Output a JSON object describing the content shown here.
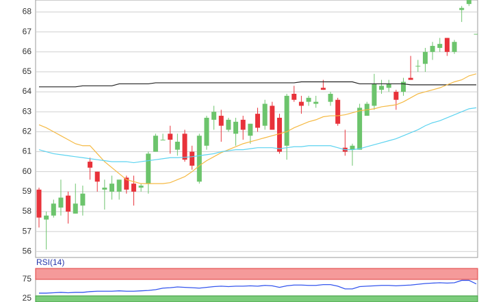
{
  "chart_data": [
    {
      "type": "candlestick",
      "ylim": [
        55.7,
        68.6
      ],
      "yticks": [
        56,
        57,
        58,
        59,
        60,
        61,
        62,
        63,
        64,
        65,
        66,
        67,
        68
      ],
      "grid": true,
      "up_color": "#6cc46c",
      "down_color": "#e8323a",
      "open": [
        59.1,
        57.6,
        57.8,
        58.2,
        58.8,
        57.9,
        58.3,
        60.5,
        60.0,
        59.1,
        59.0,
        59.0,
        59.7,
        59.4,
        59.2,
        59.4,
        61.0,
        61.6,
        61.9,
        61.1,
        61.9,
        61.0,
        59.5,
        61.3,
        62.6,
        62.8,
        62.1,
        61.9,
        62.6,
        61.8,
        62.9,
        62.3,
        63.3,
        62.7,
        61.3,
        63.9,
        63.5,
        63.5,
        63.4,
        64.2,
        63.5,
        63.6,
        61.2,
        61.1,
        61.1,
        62.8,
        63.3,
        64.1,
        64.2,
        64.0,
        64.0,
        64.7,
        65.3,
        65.4,
        66.0,
        66.2,
        66.7,
        66.0,
        68.1,
        68.4,
        66.9
      ],
      "high": [
        59.2,
        58.0,
        58.6,
        59.6,
        59.0,
        59.4,
        59.3,
        60.7,
        60.0,
        59.6,
        59.8,
        59.6,
        59.8,
        59.8,
        59.4,
        61.0,
        61.9,
        61.9,
        62.3,
        61.9,
        62.1,
        61.3,
        61.9,
        62.8,
        63.3,
        63.1,
        62.7,
        62.7,
        62.8,
        62.4,
        63.2,
        63.6,
        63.5,
        62.9,
        63.9,
        64.3,
        63.8,
        63.8,
        63.8,
        64.6,
        64.0,
        63.7,
        62.1,
        61.4,
        63.4,
        63.5,
        64.9,
        64.6,
        64.6,
        64.1,
        64.7,
        65.8,
        65.6,
        66.2,
        66.5,
        66.7,
        66.7,
        66.6,
        68.3,
        68.6,
        66.9
      ],
      "low": [
        57.2,
        56.1,
        57.7,
        57.8,
        57.4,
        57.9,
        57.8,
        59.6,
        59.0,
        58.1,
        58.6,
        58.6,
        58.9,
        58.3,
        59.0,
        58.9,
        61.0,
        61.6,
        60.9,
        60.8,
        60.5,
        60.1,
        59.4,
        61.1,
        62.1,
        61.5,
        62.0,
        61.3,
        61.6,
        61.4,
        62.0,
        62.1,
        62.1,
        60.9,
        60.6,
        63.5,
        62.9,
        63.3,
        63.2,
        64.1,
        63.3,
        62.3,
        60.8,
        60.3,
        61.1,
        62.8,
        63.1,
        63.9,
        64.0,
        63.1,
        63.8,
        64.6,
        65.0,
        65.0,
        65.6,
        66.0,
        65.8,
        65.9,
        67.5,
        68.3,
        66.9
      ],
      "close": [
        57.7,
        57.8,
        58.4,
        58.7,
        58.0,
        58.4,
        58.9,
        60.2,
        59.5,
        59.2,
        59.4,
        59.6,
        59.1,
        59.0,
        59.3,
        60.9,
        61.8,
        61.6,
        61.6,
        61.5,
        60.6,
        60.3,
        61.8,
        62.7,
        63.0,
        62.3,
        62.6,
        62.5,
        62.1,
        62.4,
        62.2,
        63.4,
        62.1,
        61.0,
        63.8,
        63.6,
        63.3,
        63.7,
        63.5,
        64.1,
        63.9,
        62.4,
        61.0,
        61.3,
        63.2,
        63.4,
        64.4,
        64.3,
        64.4,
        63.6,
        64.5,
        64.6,
        65.3,
        66.0,
        66.3,
        66.4,
        66.0,
        66.5,
        68.2,
        68.6,
        66.9
      ],
      "series": [
        {
          "color": "#222222",
          "values": [
            64.25,
            64.25,
            64.25,
            64.25,
            64.25,
            64.25,
            64.3,
            64.3,
            64.3,
            64.3,
            64.3,
            64.4,
            64.4,
            64.4,
            64.4,
            64.4,
            64.45,
            64.45,
            64.45,
            64.45,
            64.45,
            64.45,
            64.45,
            64.45,
            64.45,
            64.45,
            64.45,
            64.45,
            64.45,
            64.45,
            64.45,
            64.45,
            64.45,
            64.45,
            64.45,
            64.45,
            64.5,
            64.5,
            64.5,
            64.5,
            64.5,
            64.5,
            64.5,
            64.5,
            64.4,
            64.4,
            64.4,
            64.4,
            64.4,
            64.4,
            64.4,
            64.35,
            64.35,
            64.35,
            64.35,
            64.35,
            64.35,
            64.35,
            64.35,
            64.35,
            64.35
          ]
        },
        {
          "color": "#f5b942",
          "values": [
            62.35,
            62.2,
            62.0,
            61.8,
            61.6,
            61.4,
            61.3,
            61.3,
            60.9,
            60.5,
            60.2,
            59.9,
            59.6,
            59.5,
            59.4,
            59.4,
            59.4,
            59.4,
            59.45,
            59.6,
            59.75,
            60.0,
            60.3,
            60.55,
            60.75,
            60.95,
            61.1,
            61.25,
            61.4,
            61.5,
            61.6,
            61.7,
            61.8,
            61.9,
            62.0,
            62.2,
            62.35,
            62.5,
            62.6,
            62.75,
            62.8,
            62.8,
            62.85,
            62.95,
            63.05,
            63.1,
            63.15,
            63.25,
            63.3,
            63.35,
            63.5,
            63.7,
            63.9,
            64.0,
            64.1,
            64.2,
            64.35,
            64.5,
            64.6,
            64.8,
            64.9
          ]
        },
        {
          "color": "#5bd3f0",
          "values": [
            61.1,
            61.0,
            60.9,
            60.85,
            60.8,
            60.75,
            60.7,
            60.65,
            60.6,
            60.55,
            60.5,
            60.5,
            60.5,
            60.45,
            60.5,
            60.55,
            60.6,
            60.65,
            60.7,
            60.7,
            60.72,
            60.75,
            60.8,
            60.85,
            60.9,
            61.0,
            61.05,
            61.1,
            61.1,
            61.15,
            61.2,
            61.2,
            61.2,
            61.15,
            61.2,
            61.25,
            61.25,
            61.3,
            61.3,
            61.3,
            61.3,
            61.2,
            61.1,
            61.1,
            61.15,
            61.25,
            61.35,
            61.45,
            61.55,
            61.65,
            61.8,
            61.95,
            62.1,
            62.3,
            62.45,
            62.55,
            62.7,
            62.85,
            63.0,
            63.15,
            63.2
          ]
        }
      ]
    },
    {
      "type": "line",
      "title": "RSI(14)",
      "ylim": [
        16,
        103
      ],
      "yticks": [
        25,
        75
      ],
      "color": "#3355ee",
      "values": [
        39,
        39,
        40,
        41,
        40,
        41,
        41,
        43,
        44,
        44,
        44,
        45,
        44,
        44,
        45,
        46,
        48,
        52,
        53,
        55,
        54,
        53,
        52,
        54,
        56,
        57,
        56,
        57,
        57,
        58,
        57,
        59,
        58,
        54,
        58,
        60,
        60,
        59,
        59,
        61,
        61,
        57,
        50,
        50,
        56,
        57,
        58,
        59,
        59,
        58,
        59,
        60,
        62,
        64,
        65,
        66,
        65,
        66,
        72,
        72,
        63
      ]
    }
  ]
}
